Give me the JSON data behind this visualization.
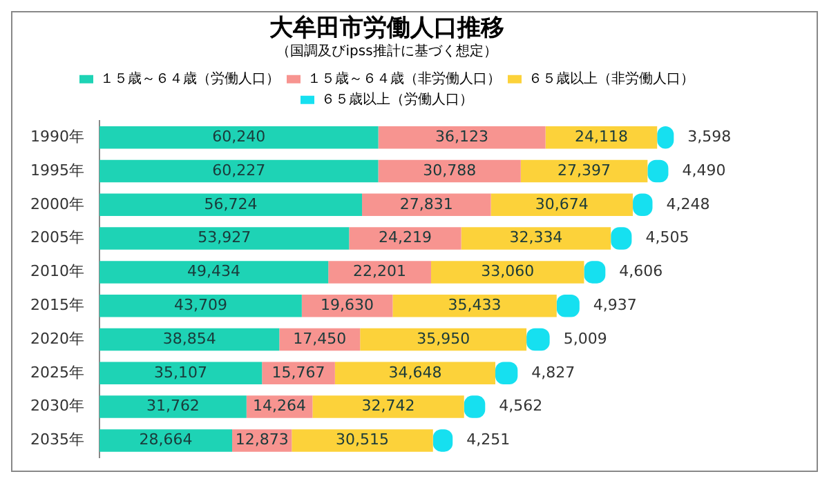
{
  "chart_data": {
    "type": "bar",
    "orientation": "horizontal",
    "stacked": true,
    "title": "大牟田市労働人口推移",
    "subtitle": "（国調及びipss推計に基づく想定）",
    "categories": [
      "1990年",
      "1995年",
      "2000年",
      "2005年",
      "2010年",
      "2015年",
      "2020年",
      "2025年",
      "2030年",
      "2035年"
    ],
    "series": [
      {
        "name": "１５歳～６４歳（労働人口）",
        "color": "#1ed3b5",
        "values": [
          60240,
          60227,
          56724,
          53927,
          49434,
          43709,
          38854,
          35107,
          31762,
          28664
        ],
        "value_labels": [
          "60,240",
          "60,227",
          "56,724",
          "53,927",
          "49,434",
          "43,709",
          "38,854",
          "35,107",
          "31,762",
          "28,664"
        ]
      },
      {
        "name": "１５歳～６４歳（非労働人口）",
        "color": "#f79490",
        "values": [
          36123,
          30788,
          27831,
          24219,
          22201,
          19630,
          17450,
          15767,
          14264,
          12873
        ],
        "value_labels": [
          "36,123",
          "30,788",
          "27,831",
          "24,219",
          "22,201",
          "19,630",
          "17,450",
          "15,767",
          "14,264",
          "12,873"
        ]
      },
      {
        "name": "６５歳以上（非労働人口）",
        "color": "#fcd23a",
        "values": [
          24118,
          27397,
          30674,
          32334,
          33060,
          35433,
          35950,
          34648,
          32742,
          30515
        ],
        "value_labels": [
          "24,118",
          "27,397",
          "30,674",
          "32,334",
          "33,060",
          "35,433",
          "35,950",
          "34,648",
          "32,742",
          "30,515"
        ]
      },
      {
        "name": "６５歳以上（労働人口）",
        "color": "#16e0f0",
        "values": [
          3598,
          4490,
          4248,
          4505,
          4606,
          4937,
          5009,
          4827,
          4562,
          4251
        ],
        "value_labels": [
          "3,598",
          "4,490",
          "4,248",
          "4,505",
          "4,606",
          "4,937",
          "5,009",
          "4,827",
          "4,562",
          "4,251"
        ]
      }
    ],
    "legend": "top",
    "grid": false
  }
}
